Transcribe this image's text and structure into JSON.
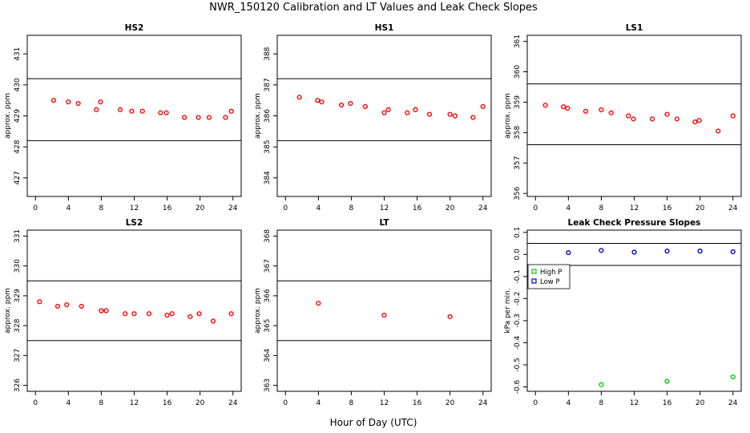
{
  "figure": {
    "title": "NWR_150120  Calibration and LT Values and Leak Check Slopes",
    "xlabel": "Hour of Day (UTC)"
  },
  "chart_data": [
    {
      "type": "scatter",
      "title": "HS2",
      "ylabel": "approx. ppm",
      "xlim": [
        -1,
        25
      ],
      "ylim": [
        426.4,
        431.6
      ],
      "xticks": [
        "0",
        "4",
        "8",
        "12",
        "16",
        "20",
        "24"
      ],
      "yticks": [
        "427",
        "428",
        "429",
        "430",
        "431"
      ],
      "hlines": [
        430.2,
        428.2
      ],
      "series": [
        {
          "color": "#ff0000",
          "marker": "circle",
          "x": [
            2.2,
            4.0,
            5.2,
            7.4,
            7.9,
            10.3,
            11.7,
            13.0,
            15.2,
            15.9,
            18.1,
            19.8,
            21.1,
            23.1,
            23.8
          ],
          "y": [
            429.5,
            429.45,
            429.4,
            429.2,
            429.45,
            429.2,
            429.15,
            429.15,
            429.1,
            429.1,
            428.95,
            428.95,
            428.95,
            428.95,
            429.15
          ]
        }
      ]
    },
    {
      "type": "scatter",
      "title": "HS1",
      "ylabel": "approx. ppm",
      "xlim": [
        -1,
        25
      ],
      "ylim": [
        383.4,
        388.6
      ],
      "xticks": [
        "0",
        "4",
        "8",
        "12",
        "16",
        "20",
        "24"
      ],
      "yticks": [
        "384",
        "385",
        "386",
        "387",
        "388"
      ],
      "hlines": [
        387.2,
        385.2
      ],
      "series": [
        {
          "color": "#ff0000",
          "marker": "circle",
          "x": [
            1.7,
            3.9,
            4.4,
            6.8,
            7.9,
            9.7,
            12.0,
            12.5,
            14.8,
            15.8,
            17.5,
            20.0,
            20.6,
            22.8,
            24.0
          ],
          "y": [
            386.6,
            386.5,
            386.45,
            386.35,
            386.4,
            386.3,
            386.1,
            386.2,
            386.1,
            386.2,
            386.05,
            386.05,
            386.0,
            385.95,
            386.3
          ]
        }
      ]
    },
    {
      "type": "scatter",
      "title": "LS1",
      "ylabel": "approx. ppm",
      "xlim": [
        -1,
        25
      ],
      "ylim": [
        355.9,
        361.2
      ],
      "xticks": [
        "0",
        "4",
        "8",
        "12",
        "16",
        "20",
        "24"
      ],
      "yticks": [
        "356",
        "357",
        "358",
        "359",
        "360",
        "361"
      ],
      "hlines": [
        359.6,
        357.6
      ],
      "series": [
        {
          "color": "#ff0000",
          "marker": "circle",
          "x": [
            1.2,
            3.4,
            3.9,
            6.1,
            8.0,
            9.2,
            11.3,
            11.9,
            14.2,
            16.0,
            17.2,
            19.4,
            19.9,
            22.2,
            24.0
          ],
          "y": [
            358.9,
            358.85,
            358.8,
            358.7,
            358.75,
            358.65,
            358.55,
            358.45,
            358.45,
            358.6,
            358.45,
            358.35,
            358.4,
            358.05,
            358.55
          ]
        }
      ]
    },
    {
      "type": "scatter",
      "title": "LS2",
      "ylabel": "approx. ppm",
      "xlim": [
        -1,
        25
      ],
      "ylim": [
        325.8,
        331.2
      ],
      "xticks": [
        "0",
        "4",
        "8",
        "12",
        "16",
        "20",
        "24"
      ],
      "yticks": [
        "326",
        "327",
        "328",
        "329",
        "330",
        "331"
      ],
      "hlines": [
        329.5,
        327.5
      ],
      "series": [
        {
          "color": "#ff0000",
          "marker": "circle",
          "x": [
            0.5,
            2.7,
            3.8,
            5.6,
            8.0,
            8.6,
            10.9,
            12.0,
            13.8,
            16.0,
            16.6,
            18.8,
            19.9,
            21.6,
            23.8
          ],
          "y": [
            328.8,
            328.65,
            328.7,
            328.65,
            328.5,
            328.5,
            328.4,
            328.4,
            328.4,
            328.35,
            328.4,
            328.3,
            328.4,
            328.15,
            328.4
          ]
        }
      ]
    },
    {
      "type": "scatter",
      "title": "LT",
      "ylabel": "approx. ppm",
      "xlim": [
        -1,
        25
      ],
      "ylim": [
        362.8,
        368.2
      ],
      "xticks": [
        "0",
        "4",
        "8",
        "12",
        "16",
        "20",
        "24"
      ],
      "yticks": [
        "363",
        "364",
        "365",
        "366",
        "367",
        "368"
      ],
      "hlines": [
        366.5,
        364.5
      ],
      "series": [
        {
          "color": "#ff0000",
          "marker": "circle",
          "x": [
            4.0,
            12.0,
            20.0
          ],
          "y": [
            365.75,
            365.35,
            365.3
          ]
        }
      ]
    },
    {
      "type": "scatter",
      "title": "Leak Check Pressure Slopes",
      "ylabel": "kPa per min.",
      "xlim": [
        -1,
        25
      ],
      "ylim": [
        -0.62,
        0.11
      ],
      "xticks": [
        "0",
        "4",
        "8",
        "12",
        "16",
        "20",
        "24"
      ],
      "yticks": [
        "-0.6",
        "-0.5",
        "-0.4",
        "-0.3",
        "-0.2",
        "-0.1",
        "0.0",
        "0.1"
      ],
      "hlines": [
        0.05,
        -0.05
      ],
      "legend": {
        "position": "left",
        "entries": [
          "High P",
          "Low P"
        ]
      },
      "series": [
        {
          "name": "High P",
          "color": "#00cc00",
          "marker": "circle",
          "x": [
            8.0,
            16.0,
            24.0
          ],
          "y": [
            -0.59,
            -0.575,
            -0.555
          ]
        },
        {
          "name": "Low P",
          "color": "#0000cc",
          "marker": "circle",
          "x": [
            4.0,
            8.0,
            12.0,
            16.0,
            20.0,
            24.0
          ],
          "y": [
            0.008,
            0.018,
            0.01,
            0.015,
            0.015,
            0.012
          ]
        }
      ]
    }
  ]
}
